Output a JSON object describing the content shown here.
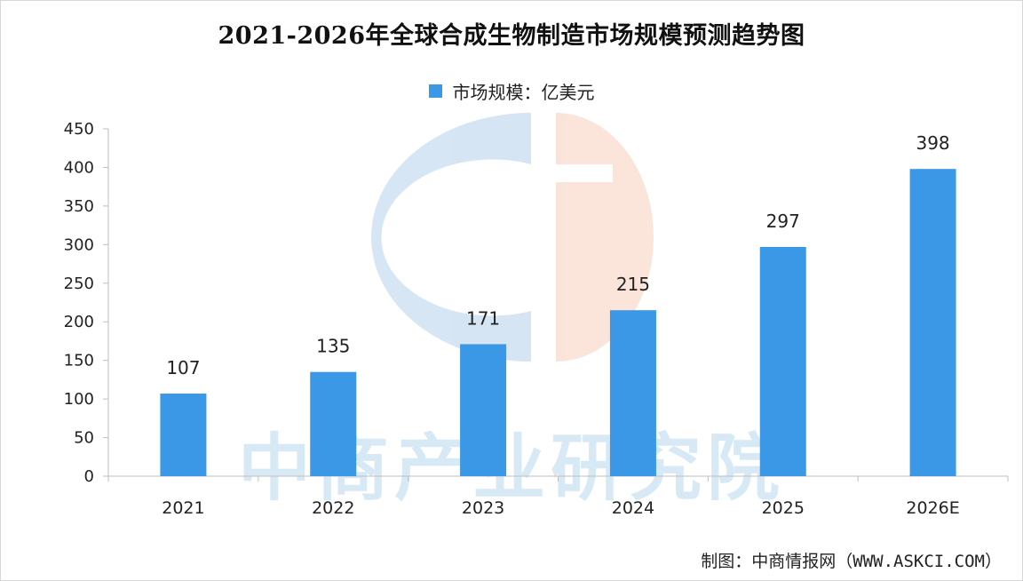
{
  "chart_data": {
    "type": "bar",
    "title": "2021-2026年全球合成生物制造市场规模预测趋势图",
    "categories": [
      "2021",
      "2022",
      "2023",
      "2024",
      "2025",
      "2026E"
    ],
    "series": [
      {
        "name": "市场规模：亿美元",
        "values": [
          107,
          135,
          171,
          215,
          297,
          398
        ]
      }
    ],
    "ylim": [
      0,
      450
    ],
    "yticks": [
      0,
      50,
      100,
      150,
      200,
      250,
      300,
      350,
      400,
      450
    ],
    "grid": false,
    "legend": "top-center",
    "bar_color": "#3a98e6",
    "data_labels": true
  },
  "watermark": "中商产业研究院",
  "credit": "制图：中商情报网（WWW.ASKCI.COM）"
}
